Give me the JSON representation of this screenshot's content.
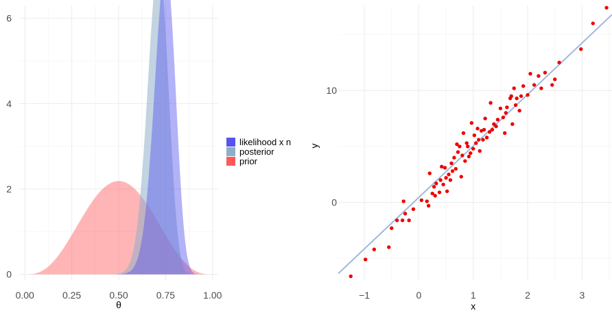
{
  "chart_data": [
    {
      "type": "area",
      "xlabel": "θ",
      "ylabel": "",
      "xlim": [
        -0.03,
        1.03
      ],
      "ylim": [
        -0.15,
        6.3
      ],
      "x_ticks": [
        0,
        0.25,
        0.5,
        0.75,
        1
      ],
      "x_tick_labels": [
        "0.00",
        "0.25",
        "0.50",
        "0.75",
        "1.00"
      ],
      "y_ticks": [
        0,
        2,
        4,
        6
      ],
      "y_tick_labels": [
        "0",
        "2",
        "4",
        "6"
      ],
      "grid": true,
      "legend_position": "right",
      "legend_entries": [
        "likelihood x n",
        "posterior",
        "prior"
      ],
      "series": [
        {
          "name": "prior",
          "kind": "beta",
          "a": 4,
          "b": 4,
          "color": "#ff5a5a",
          "opacity": 0.45,
          "peak_x": 0.5,
          "peak_y": 2.19
        },
        {
          "name": "posterior",
          "kind": "beta",
          "a": 48,
          "b": 20,
          "color": "#8faecb",
          "opacity": 0.55,
          "peak_x": 0.71,
          "peak_y": 6.07
        },
        {
          "name": "likelihood x n",
          "kind": "beta",
          "a": 46,
          "b": 16,
          "color": "#5555ee",
          "opacity": 0.45,
          "peak_x": 0.75,
          "peak_y": 5.78
        }
      ],
      "legend_colors": [
        "#5555ee",
        "#8faecb",
        "#ff5a5a"
      ]
    },
    {
      "type": "scatter",
      "xlabel": "x",
      "ylabel": "y",
      "xlim": [
        -1.48,
        3.55
      ],
      "ylim": [
        -7.0,
        17.6
      ],
      "x_ticks": [
        -1,
        0,
        1,
        2,
        3
      ],
      "x_tick_labels": [
        "−1",
        "0",
        "1",
        "2",
        "3"
      ],
      "y_ticks": [
        0,
        10
      ],
      "y_tick_labels": [
        "0",
        "10"
      ],
      "grid": true,
      "point_color": "#ee0000",
      "line_color": "#9fb8de",
      "regression_line": {
        "intercept": 0.45,
        "slope": 4.6
      },
      "points": [
        [
          -1.25,
          -6.6
        ],
        [
          -0.98,
          -5.1
        ],
        [
          -0.82,
          -4.2
        ],
        [
          -0.55,
          -4.0
        ],
        [
          -0.5,
          -2.3
        ],
        [
          -0.4,
          -1.6
        ],
        [
          -0.3,
          -1.6
        ],
        [
          -0.25,
          -1.0
        ],
        [
          -0.28,
          0.1
        ],
        [
          -0.18,
          -1.6
        ],
        [
          -0.1,
          -0.6
        ],
        [
          0.05,
          0.2
        ],
        [
          0.15,
          0.1
        ],
        [
          0.18,
          -0.3
        ],
        [
          0.2,
          2.6
        ],
        [
          0.25,
          0.8
        ],
        [
          0.28,
          1.4
        ],
        [
          0.3,
          0.6
        ],
        [
          0.32,
          1.7
        ],
        [
          0.38,
          0.9
        ],
        [
          0.4,
          2.0
        ],
        [
          0.42,
          3.2
        ],
        [
          0.45,
          1.6
        ],
        [
          0.48,
          3.1
        ],
        [
          0.5,
          2.2
        ],
        [
          0.52,
          1.0
        ],
        [
          0.55,
          2.5
        ],
        [
          0.58,
          2.0
        ],
        [
          0.6,
          3.5
        ],
        [
          0.62,
          2.8
        ],
        [
          0.65,
          4.0
        ],
        [
          0.68,
          3.0
        ],
        [
          0.7,
          5.2
        ],
        [
          0.72,
          4.5
        ],
        [
          0.75,
          5.0
        ],
        [
          0.78,
          2.3
        ],
        [
          0.8,
          4.2
        ],
        [
          0.82,
          6.2
        ],
        [
          0.85,
          3.7
        ],
        [
          0.88,
          5.3
        ],
        [
          0.9,
          5.0
        ],
        [
          0.92,
          4.1
        ],
        [
          0.95,
          4.4
        ],
        [
          0.97,
          7.1
        ],
        [
          1.0,
          4.8
        ],
        [
          1.02,
          6.0
        ],
        [
          1.05,
          5.3
        ],
        [
          1.08,
          6.6
        ],
        [
          1.1,
          5.6
        ],
        [
          1.12,
          4.6
        ],
        [
          1.15,
          6.4
        ],
        [
          1.18,
          5.6
        ],
        [
          1.2,
          6.5
        ],
        [
          1.22,
          7.5
        ],
        [
          1.25,
          5.8
        ],
        [
          1.3,
          6.3
        ],
        [
          1.32,
          8.9
        ],
        [
          1.35,
          6.5
        ],
        [
          1.38,
          7.0
        ],
        [
          1.42,
          6.8
        ],
        [
          1.45,
          7.4
        ],
        [
          1.5,
          8.4
        ],
        [
          1.55,
          7.6
        ],
        [
          1.58,
          6.2
        ],
        [
          1.6,
          8.0
        ],
        [
          1.62,
          8.5
        ],
        [
          1.68,
          9.3
        ],
        [
          1.7,
          9.5
        ],
        [
          1.72,
          7.0
        ],
        [
          1.75,
          10.2
        ],
        [
          1.78,
          8.7
        ],
        [
          1.8,
          9.3
        ],
        [
          1.85,
          8.2
        ],
        [
          1.88,
          9.5
        ],
        [
          1.92,
          10.4
        ],
        [
          2.0,
          9.6
        ],
        [
          2.05,
          11.5
        ],
        [
          2.12,
          10.5
        ],
        [
          2.2,
          11.3
        ],
        [
          2.25,
          10.2
        ],
        [
          2.32,
          11.6
        ],
        [
          2.45,
          10.5
        ],
        [
          2.5,
          11.0
        ],
        [
          2.58,
          12.5
        ],
        [
          2.98,
          13.7
        ],
        [
          3.2,
          16.0
        ],
        [
          3.45,
          17.4
        ]
      ]
    }
  ]
}
